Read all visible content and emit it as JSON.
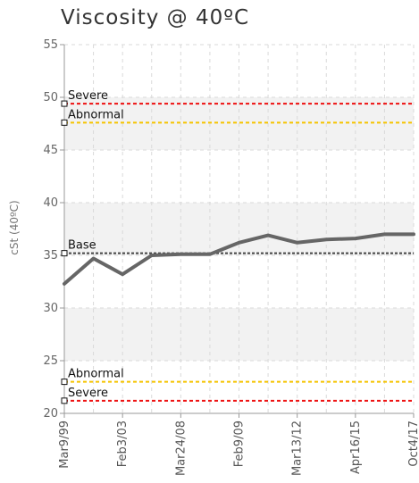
{
  "chart_data": {
    "type": "line",
    "title": "Viscosity @ 40ºC",
    "ylabel": "cSt (40ºC)",
    "xlabel": "",
    "ylim": [
      20,
      55
    ],
    "yticks": [
      20,
      25,
      30,
      35,
      40,
      45,
      50,
      55
    ],
    "x_tick_labels": [
      "Mar9/99",
      "Feb3/03",
      "Mar24/08",
      "Feb9/09",
      "Mar13/12",
      "Apr16/15",
      "Oct4/17"
    ],
    "grid": true,
    "series": [
      {
        "values": [
          32.3,
          34.7,
          33.2,
          35.0,
          35.1,
          35.1,
          36.2,
          36.9,
          36.2,
          36.5,
          36.6,
          37.0,
          37.0
        ]
      }
    ],
    "reference_lines": [
      {
        "label": "Severe",
        "value": 49.4,
        "color": "#ee1111"
      },
      {
        "label": "Abnormal",
        "value": 47.6,
        "color": "#f5c400"
      },
      {
        "label": "Base",
        "value": 35.2,
        "color": "#444444"
      },
      {
        "label": "Abnormal",
        "value": 23.0,
        "color": "#f5c400"
      },
      {
        "label": "Severe",
        "value": 21.2,
        "color": "#ee1111"
      }
    ],
    "colors": {
      "series": "#666666",
      "band": "#f2f2f2",
      "grid": "#d9d9d9",
      "axis": "#999999"
    }
  }
}
